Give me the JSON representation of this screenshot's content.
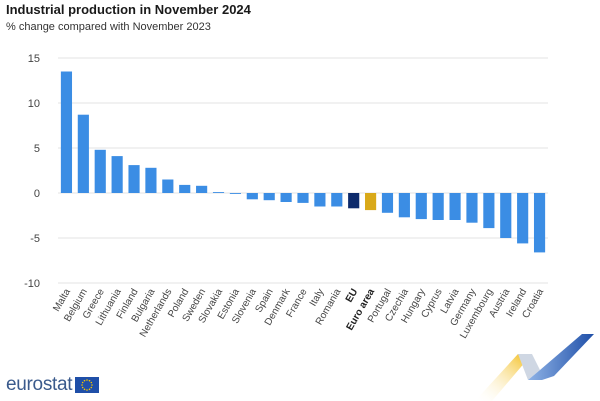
{
  "header": {
    "title": "Industrial production in November 2024",
    "subtitle": "% change compared with November 2023"
  },
  "branding": {
    "logo_text": "eurostat",
    "flag_icon": "eu-flag-icon",
    "decoration_icon": "ribbon-decoration-icon"
  },
  "colors": {
    "country_bar": "#3b8de4",
    "eu_bar": "#0d2a6b",
    "euro_area_bar": "#d9a919",
    "grid": "#e3e3e3",
    "logo_blue": "#3a5a8c"
  },
  "chart_data": {
    "type": "bar",
    "title": "Industrial production in November 2024",
    "subtitle": "% change compared with November 2023",
    "xlabel": "",
    "ylabel": "",
    "ylim": [
      -10,
      15
    ],
    "yticks": [
      15,
      10,
      5,
      0,
      -5,
      -10
    ],
    "grid": true,
    "categories": [
      "Malta",
      "Belgium",
      "Greece",
      "Lithuania",
      "Finland",
      "Bulgaria",
      "Netherlands",
      "Poland",
      "Sweden",
      "Slovakia",
      "Estonia",
      "Slovenia",
      "Spain",
      "Denmark",
      "France",
      "Italy",
      "Romania",
      "EU",
      "Euro area",
      "Portugal",
      "Czechia",
      "Hungary",
      "Cyprus",
      "Latvia",
      "Germany",
      "Luxembourg",
      "Austria",
      "Ireland",
      "Croatia"
    ],
    "values": [
      13.5,
      8.7,
      4.8,
      4.1,
      3.1,
      2.8,
      1.5,
      0.9,
      0.8,
      0.1,
      -0.1,
      -0.7,
      -0.8,
      -1.0,
      -1.1,
      -1.5,
      -1.5,
      -1.7,
      -1.9,
      -2.2,
      -2.7,
      -2.9,
      -3.0,
      -3.0,
      -3.3,
      -3.9,
      -5.0,
      -5.6,
      -6.6
    ],
    "highlight": {
      "EU": "eu",
      "Euro area": "euro_area"
    }
  }
}
